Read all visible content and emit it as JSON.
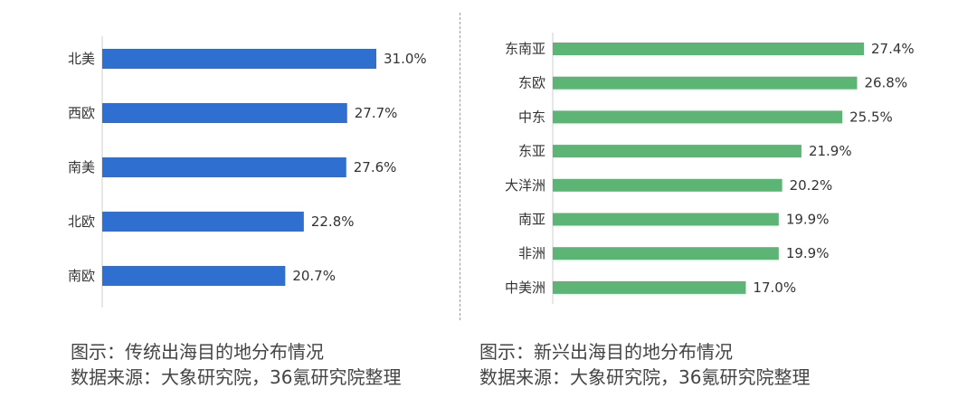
{
  "chart_data": [
    {
      "type": "bar",
      "orientation": "horizontal",
      "categories": [
        "北美",
        "西欧",
        "南美",
        "北欧",
        "南欧"
      ],
      "values": [
        31.0,
        27.7,
        27.6,
        22.8,
        20.7
      ],
      "value_labels": [
        "31.0%",
        "27.7%",
        "27.6%",
        "22.8%",
        "20.7%"
      ],
      "xlim": [
        0,
        31.0
      ],
      "color": "#2E6FCF",
      "grid": false
    },
    {
      "type": "bar",
      "orientation": "horizontal",
      "categories": [
        "东南亚",
        "东欧",
        "中东",
        "东亚",
        "大洋洲",
        "南亚",
        "非洲",
        "中美洲"
      ],
      "values": [
        27.4,
        26.8,
        25.5,
        21.9,
        20.2,
        19.9,
        19.9,
        17.0
      ],
      "value_labels": [
        "27.4%",
        "26.8%",
        "25.5%",
        "21.9%",
        "20.2%",
        "19.9%",
        "19.9%",
        "17.0%"
      ],
      "xlim": [
        0,
        27.4
      ],
      "color": "#5CB574",
      "grid": false
    }
  ],
  "captions": {
    "left": {
      "figure": "图示：传统出海目的地分布情况",
      "source": "数据来源：大象研究院，36氪研究院整理"
    },
    "right": {
      "figure": "图示：新兴出海目的地分布情况",
      "source": "数据来源：大象研究院，36氪研究院整理"
    }
  }
}
